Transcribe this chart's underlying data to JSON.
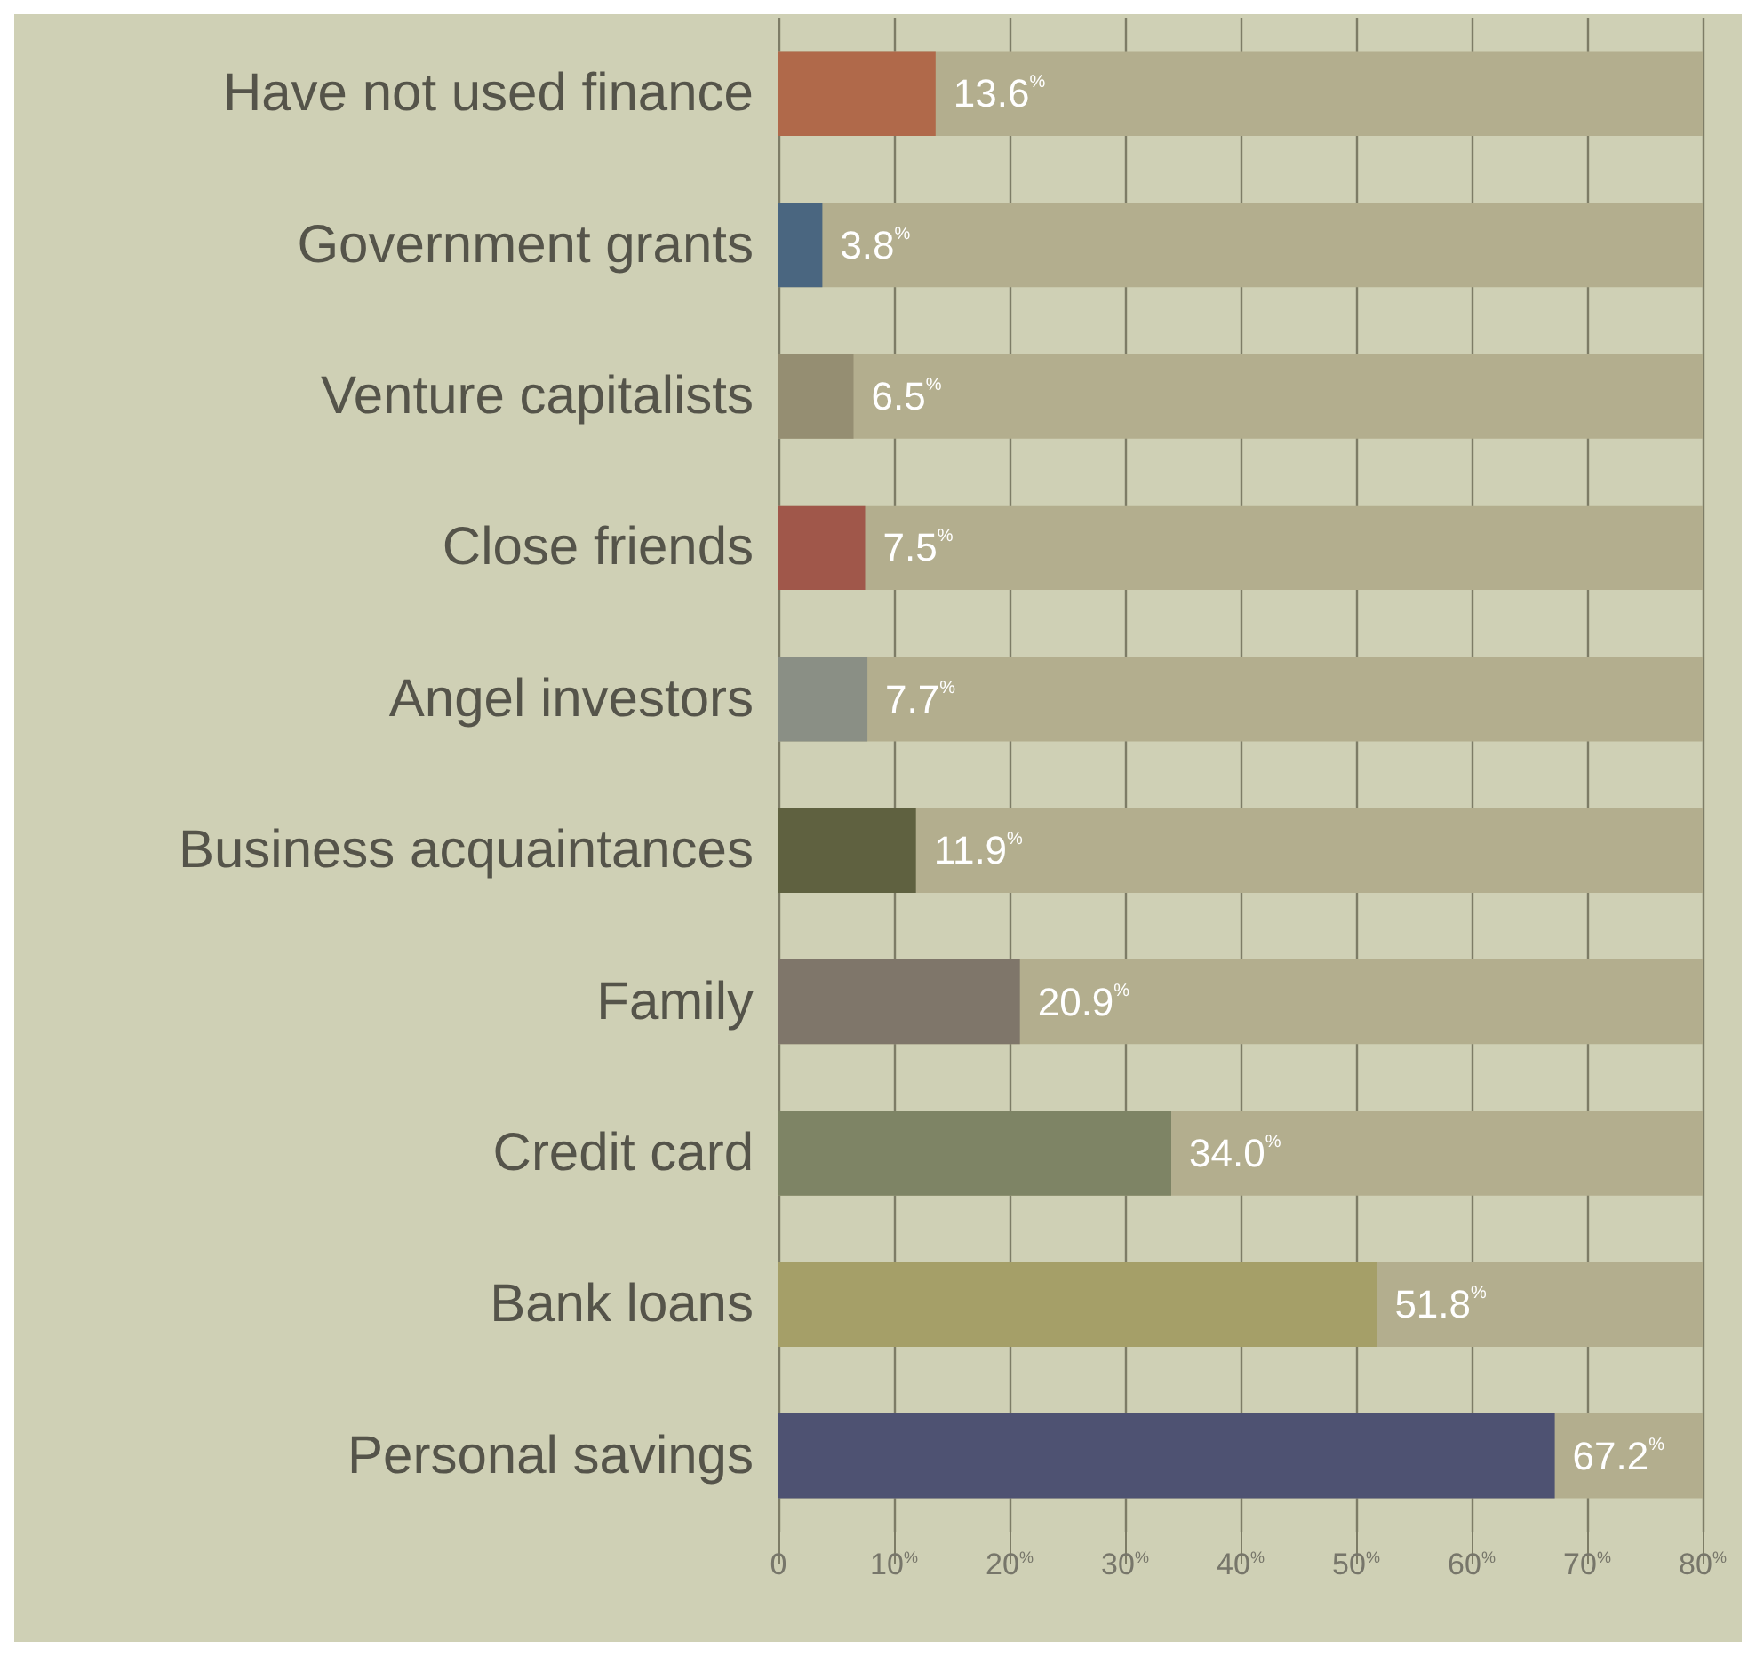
{
  "chart_data": {
    "type": "bar",
    "orientation": "horizontal",
    "categories": [
      "Have not used finance",
      "Government grants",
      "Venture capitalists",
      "Close friends",
      "Angel investors",
      "Business acquaintances",
      "Family",
      "Credit card",
      "Bank loans",
      "Personal savings"
    ],
    "values": [
      13.6,
      3.8,
      6.5,
      7.5,
      7.7,
      11.9,
      20.9,
      34.0,
      51.8,
      67.2
    ],
    "colors": [
      "#b0694a",
      "#4a6680",
      "#958e72",
      "#a0574a",
      "#8a8f85",
      "#5f6140",
      "#7f766a",
      "#7e8465",
      "#a59f68",
      "#4e5272"
    ],
    "value_labels": [
      "13.6$^{%}$",
      "3.8$^{%}$",
      "6.5$^{%}$",
      "7.5$^{%}$",
      "7.7$^{%}$",
      "11.9$^{%}$",
      "20.9$^{%}$",
      "34.0$^{%}$",
      "51.8$^{%}$",
      "67.2$^{%}$"
    ],
    "xlim": [
      0,
      80
    ],
    "xticks": [
      0,
      {
        "value": 10,
        "label": "10$^{%}$"
      },
      {
        "value": 20,
        "label": "20$^{%}$"
      },
      {
        "value": 30,
        "label": "30$^{%}$"
      },
      {
        "value": 40,
        "label": "40$^{%}$"
      },
      {
        "value": 50,
        "label": "50$^{%}$"
      },
      {
        "value": 60,
        "label": "60$^{%}$"
      },
      {
        "value": 70,
        "label": "70$^{%}$"
      },
      {
        "value": 80,
        "label": "80$^{%}$"
      }
    ],
    "grid": "x"
  }
}
